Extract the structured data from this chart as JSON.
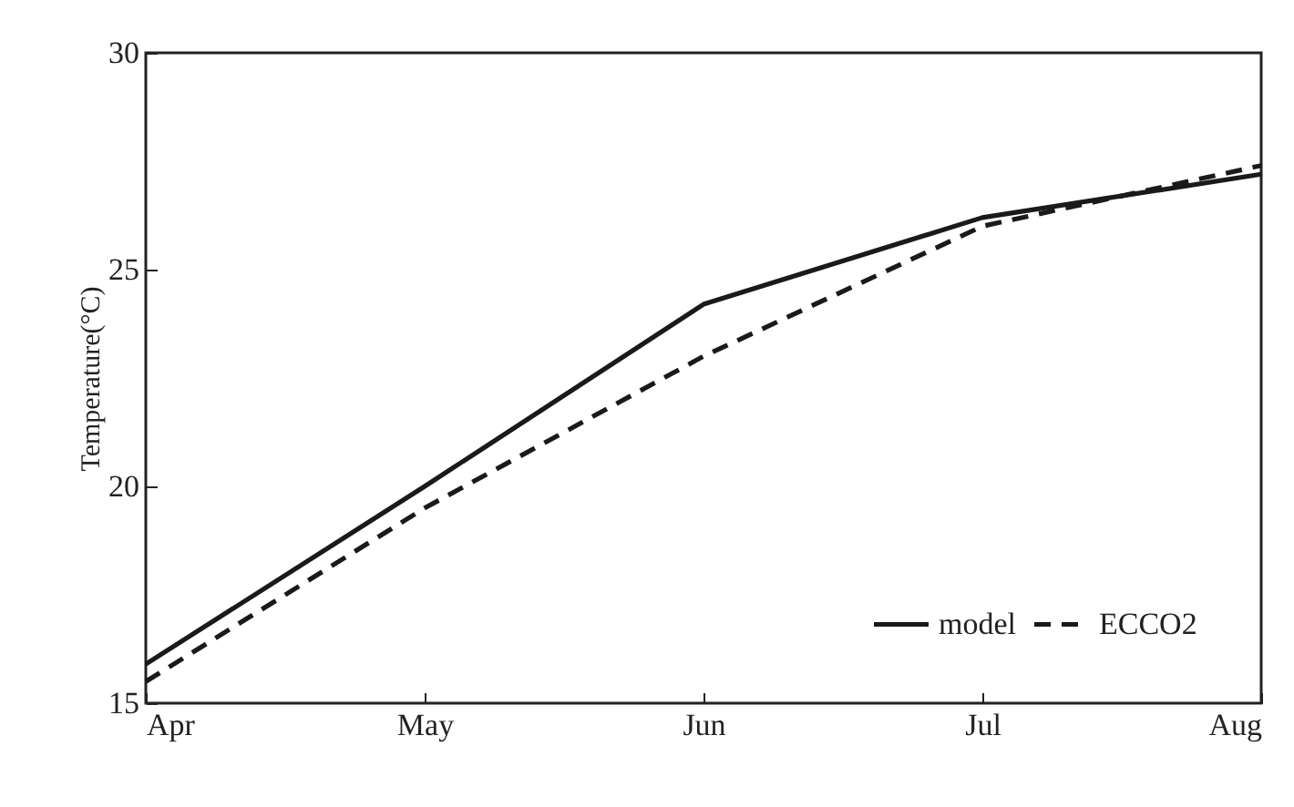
{
  "chart_data": {
    "type": "line",
    "ylabel": "Temperature(°C)",
    "categories": [
      "Apr",
      "May",
      "Jun",
      "Jul",
      "Aug"
    ],
    "series": [
      {
        "name": "model",
        "color": "#1a1a1a",
        "line_style": "solid",
        "values": [
          15.9,
          20.0,
          24.2,
          26.2,
          27.2
        ]
      },
      {
        "name": "ECCO2",
        "color": "#1a1a1a",
        "line_style": "dashed",
        "values": [
          15.5,
          19.5,
          23.0,
          26.0,
          27.4
        ]
      }
    ],
    "ylim": [
      15,
      30
    ],
    "yticks": [
      15,
      20,
      25,
      30
    ],
    "grid": false,
    "legend": "bottom right",
    "marker": "none"
  }
}
